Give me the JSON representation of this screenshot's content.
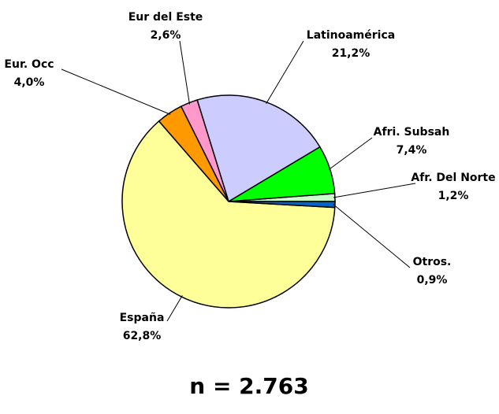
{
  "chart_data": {
    "type": "pie",
    "categories": [
      "Afr. Del Norte",
      "Afri. Subsah",
      "Latinoamérica",
      "Eur del Este",
      "Eur. Occ",
      "España",
      "Otros."
    ],
    "values": [
      1.2,
      7.4,
      21.2,
      2.6,
      4.0,
      62.8,
      0.9
    ],
    "value_labels": [
      "1,2%",
      "7,4%",
      "21,2%",
      "2,6%",
      "4,0%",
      "62,8%",
      "0,9%"
    ],
    "colors": [
      "#ccffcc",
      "#00ff00",
      "#ccccff",
      "#ff99cc",
      "#ff9900",
      "#ffff99",
      "#0066cc"
    ],
    "annotation": "n = 2.763"
  }
}
